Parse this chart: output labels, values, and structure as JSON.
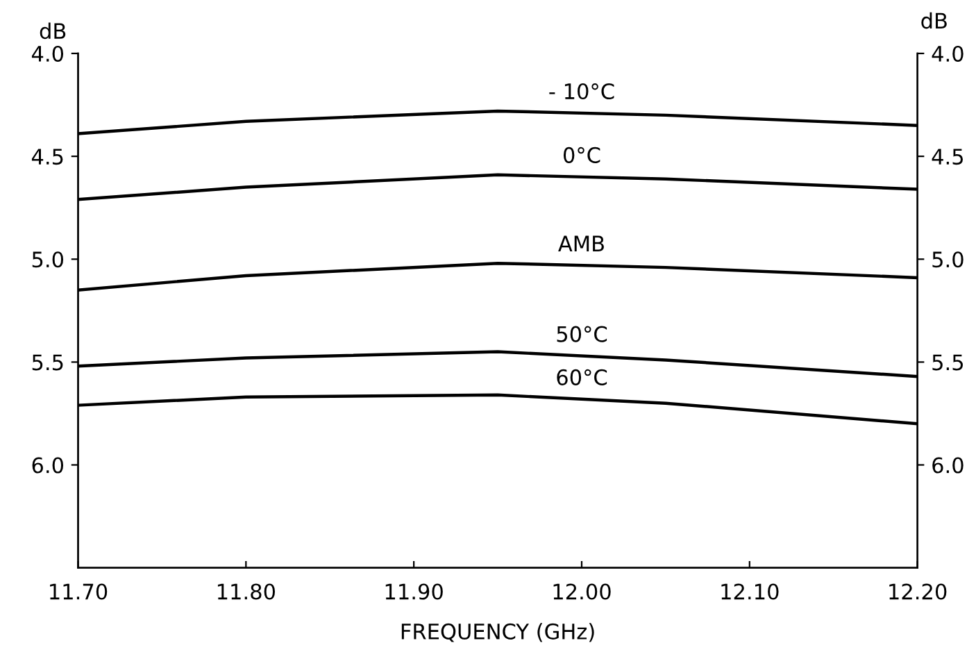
{
  "chart_data": {
    "type": "line",
    "xlabel": "FREQUENCY (GHz)",
    "ylabel": "dB",
    "y2label": "dB",
    "x": [
      11.7,
      11.8,
      11.95,
      12.05,
      12.2
    ],
    "series": [
      {
        "name": "- 10°C",
        "color": "#000000",
        "values": [
          4.39,
          4.33,
          4.28,
          4.3,
          4.35
        ]
      },
      {
        "name": "0°C",
        "color": "#000000",
        "values": [
          4.71,
          4.65,
          4.59,
          4.61,
          4.66
        ]
      },
      {
        "name": "AMB",
        "color": "#000000",
        "values": [
          5.15,
          5.08,
          5.02,
          5.04,
          5.09
        ]
      },
      {
        "name": "50°C",
        "color": "#000000",
        "values": [
          5.52,
          5.48,
          5.45,
          5.49,
          5.57
        ]
      },
      {
        "name": "60°C",
        "color": "#000000",
        "values": [
          5.71,
          5.67,
          5.66,
          5.7,
          5.8
        ]
      }
    ],
    "xlim": [
      11.7,
      12.2
    ],
    "xticks": [
      {
        "value": 11.7,
        "label": "11.70"
      },
      {
        "value": 11.8,
        "label": "11.80"
      },
      {
        "value": 11.9,
        "label": "11.90"
      },
      {
        "value": 12.0,
        "label": "12.00"
      },
      {
        "value": 12.1,
        "label": "12.10"
      },
      {
        "value": 12.2,
        "label": "12.20"
      }
    ],
    "ylim": [
      6.5,
      4.0
    ],
    "yticks": [
      {
        "value": 4.0,
        "label": "4.0"
      },
      {
        "value": 4.5,
        "label": "4.5"
      },
      {
        "value": 5.0,
        "label": "5.0"
      },
      {
        "value": 5.5,
        "label": "5.5"
      },
      {
        "value": 6.0,
        "label": "6.0"
      }
    ],
    "y2lim": [
      6.5,
      4.0
    ],
    "y2ticks": [
      {
        "value": 4.0,
        "label": "4.0"
      },
      {
        "value": 4.5,
        "label": "4.5"
      },
      {
        "value": 5.0,
        "label": "5.0"
      },
      {
        "value": 5.5,
        "label": "5.5"
      },
      {
        "value": 6.0,
        "label": "6.0"
      }
    ],
    "grid": false,
    "legend": false,
    "marker": "none",
    "line_style": "solid"
  }
}
